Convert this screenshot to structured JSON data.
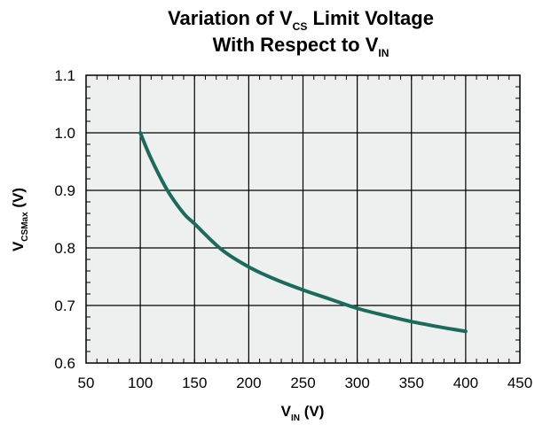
{
  "chart_data": {
    "type": "line",
    "title": {
      "line1": {
        "main": "Variation of V",
        "sub": "CS",
        "rest": " Limit Voltage"
      },
      "line2": {
        "main": "With Respect to V",
        "sub": "IN"
      }
    },
    "xlabel": {
      "main": "V",
      "sub": "IN",
      "rest": " (V)"
    },
    "ylabel": {
      "main": "V",
      "sub": "CSMax",
      "rest": " (V)"
    },
    "xlim": [
      50,
      450
    ],
    "ylim": [
      0.6,
      1.1
    ],
    "x_ticks": [
      50,
      100,
      150,
      200,
      250,
      300,
      350,
      400,
      450
    ],
    "y_ticks": [
      0.6,
      0.7,
      0.8,
      0.9,
      1.0,
      1.1
    ],
    "x_tick_labels": [
      "50",
      "100",
      "150",
      "200",
      "250",
      "300",
      "350",
      "400",
      "450"
    ],
    "y_tick_labels": [
      "0.6",
      "0.7",
      "0.8",
      "0.9",
      "1.0",
      "1.1"
    ],
    "grid": true,
    "background_color": "#eef0f0",
    "line_color": "#1a6b5c",
    "series": [
      {
        "x": [
          100,
          110,
          125,
          140,
          150,
          175,
          200,
          225,
          250,
          275,
          300,
          325,
          350,
          375,
          400
        ],
        "y": [
          1.0,
          0.955,
          0.9,
          0.86,
          0.842,
          0.797,
          0.767,
          0.745,
          0.727,
          0.711,
          0.695,
          0.683,
          0.672,
          0.663,
          0.655
        ]
      }
    ]
  }
}
